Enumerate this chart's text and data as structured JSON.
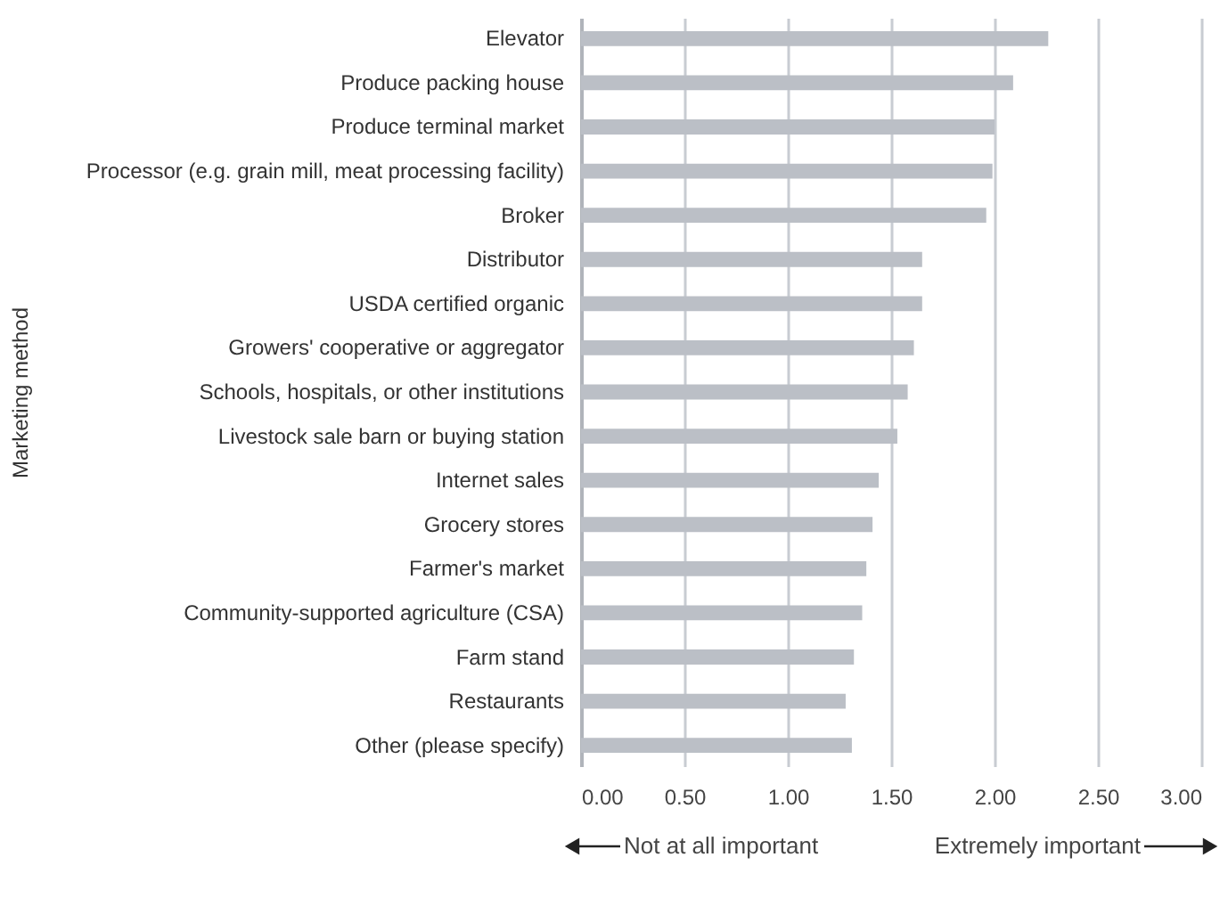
{
  "chart_data": {
    "type": "bar",
    "orientation": "horizontal",
    "ylabel": "Marketing method",
    "categories": [
      "Elevator",
      "Produce packing house",
      "Produce terminal market",
      "Processor (e.g. grain mill, meat processing facility)",
      "Broker",
      "Distributor",
      "USDA certified organic",
      "Growers' cooperative or aggregator",
      "Schools, hospitals, or other institutions",
      "Livestock sale barn or buying station",
      "Internet sales",
      "Grocery stores",
      "Farmer's market",
      "Community-supported agriculture (CSA)",
      "Farm stand",
      "Restaurants",
      "Other (please specify)"
    ],
    "values": [
      2.26,
      2.09,
      2.0,
      1.99,
      1.96,
      1.65,
      1.65,
      1.61,
      1.58,
      1.53,
      1.44,
      1.41,
      1.38,
      1.36,
      1.32,
      1.28,
      1.31
    ],
    "color": "#bbbfc6",
    "xlim": [
      0,
      3
    ],
    "xticks": [
      {
        "value": 0,
        "label": "0.00"
      },
      {
        "value": 0.5,
        "label": "0.50"
      },
      {
        "value": 1,
        "label": "1.00"
      },
      {
        "value": 1.5,
        "label": "1.50"
      },
      {
        "value": 2,
        "label": "2.00"
      },
      {
        "value": 2.5,
        "label": "2.50"
      },
      {
        "value": 3,
        "label": "3.00"
      }
    ],
    "grid": "x",
    "annotations": [
      "Not at all important",
      "Extremely important"
    ]
  }
}
